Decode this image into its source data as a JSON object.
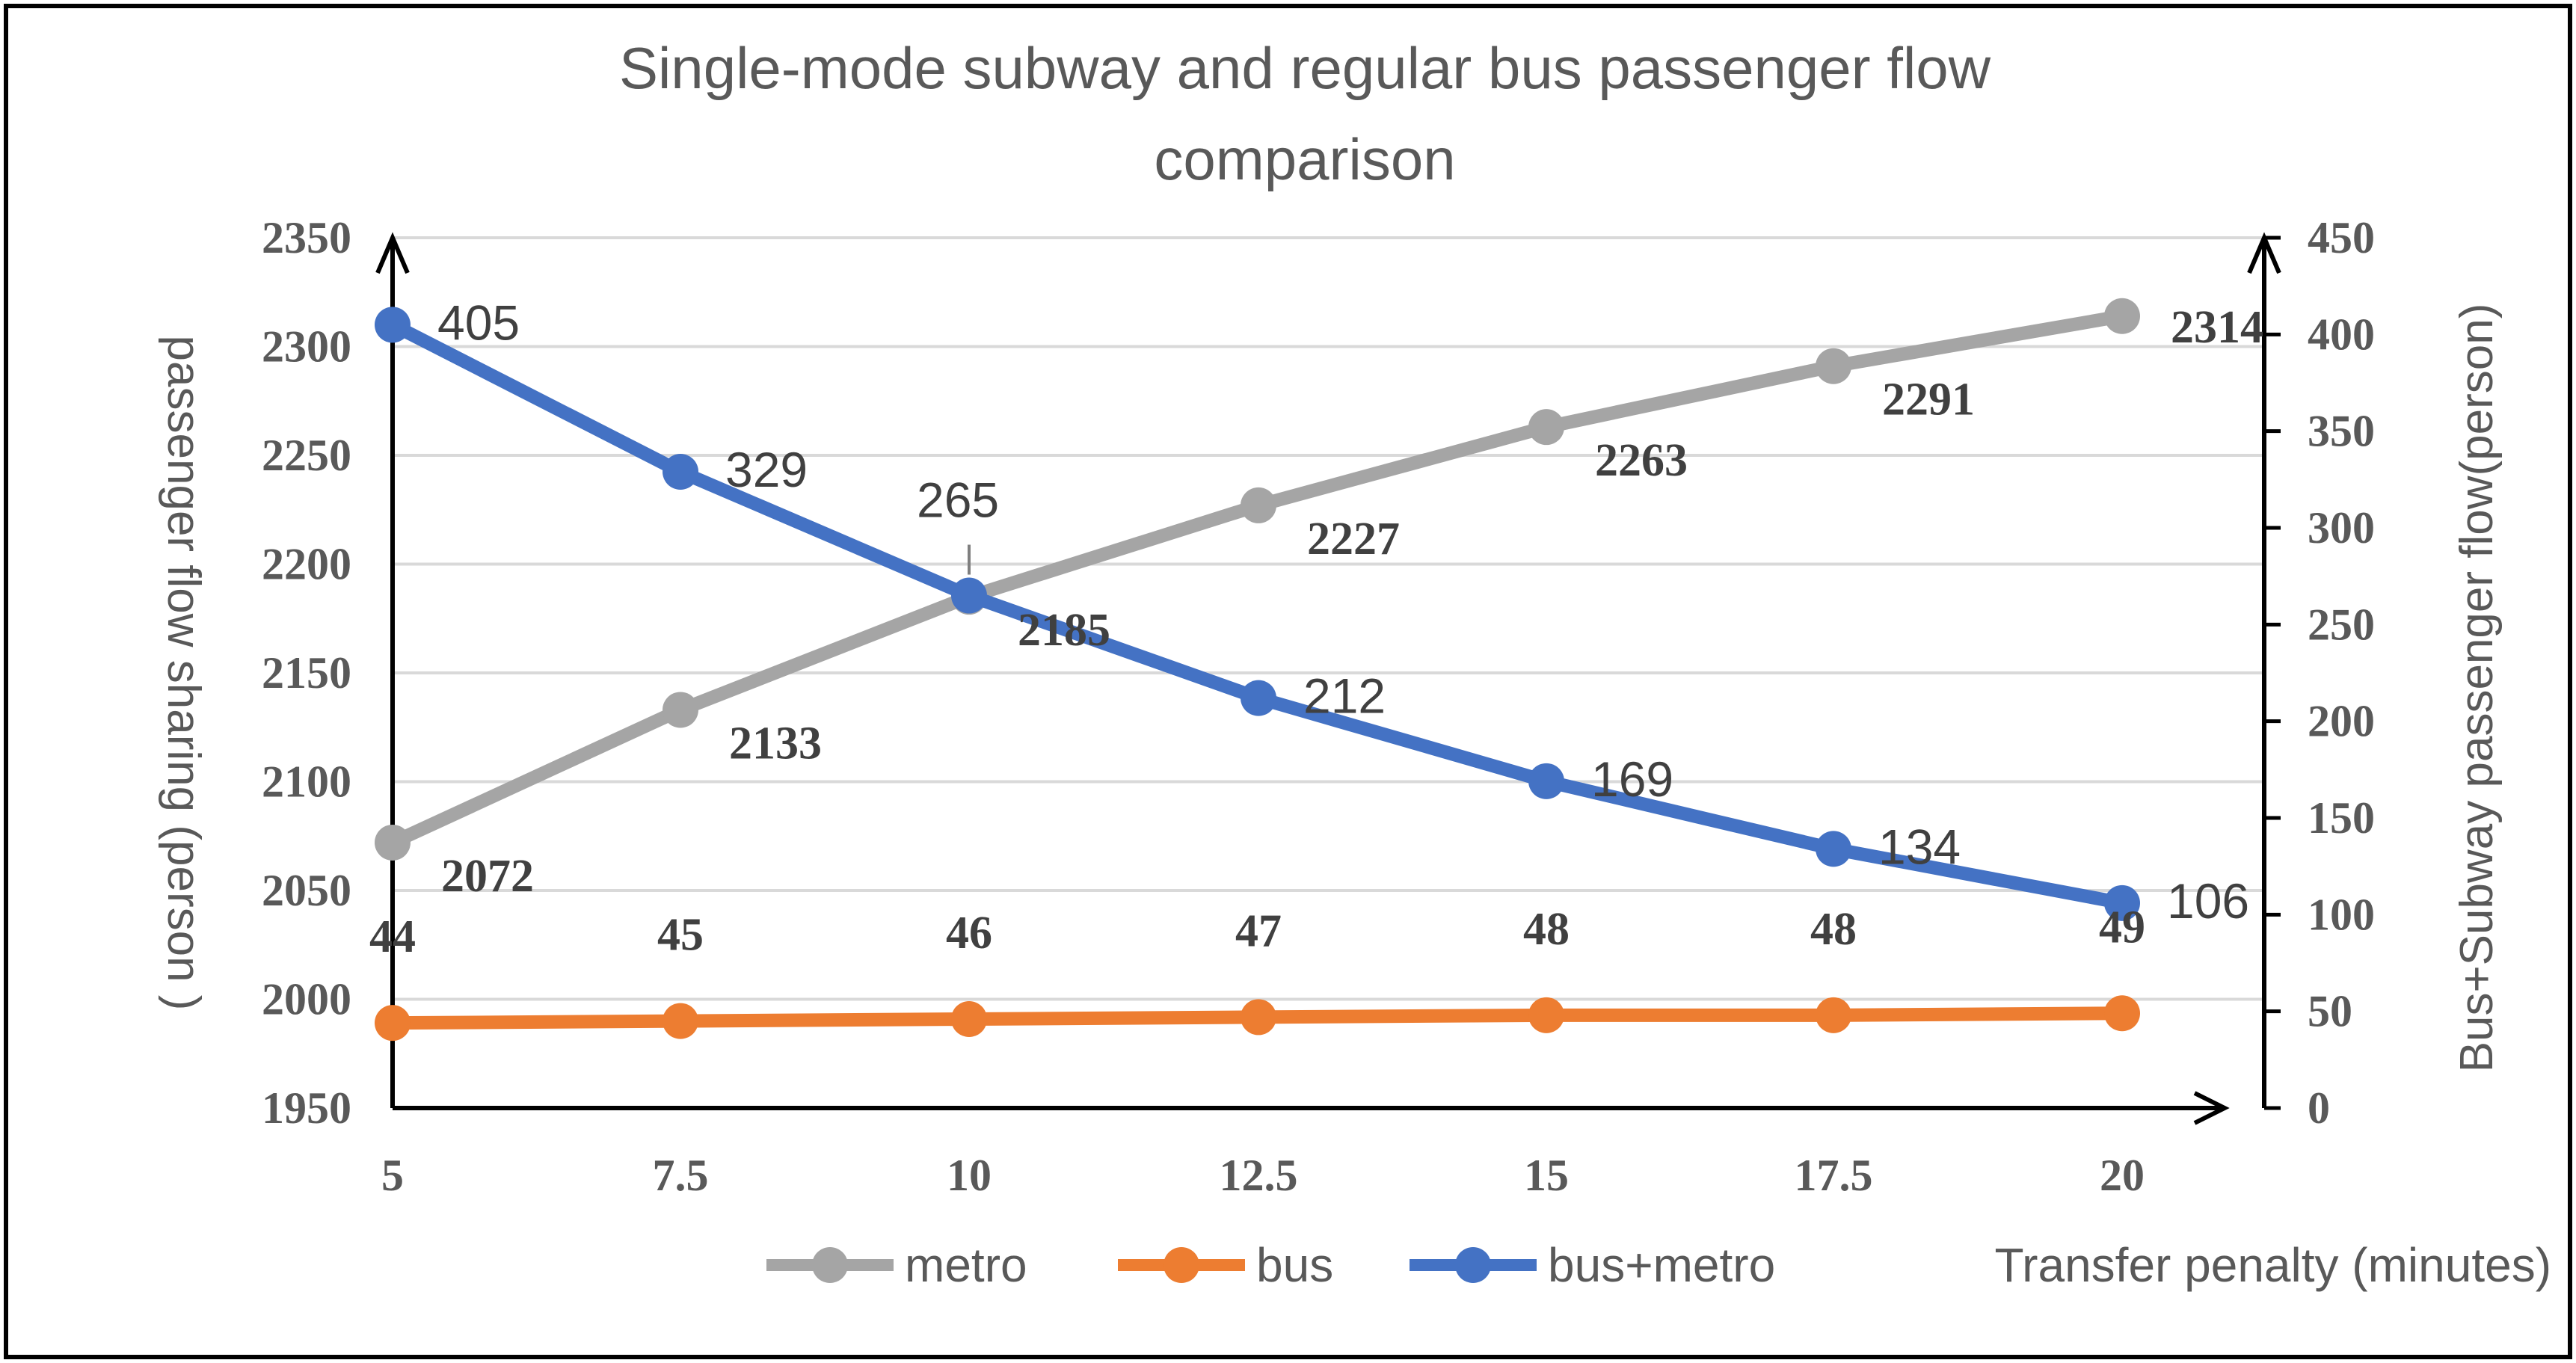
{
  "chart_data": {
    "type": "line",
    "title_lines": [
      "Single-mode subway and regular bus passenger flow",
      "comparison"
    ],
    "xlabel": "Transfer penalty (minutes)",
    "ylabel_left": "passenger flow sharing (person )",
    "ylabel_right": "Bus+Subway passenger flow(person)",
    "categories": [
      "5",
      "7.5",
      "10",
      "12.5",
      "15",
      "17.5",
      "20"
    ],
    "y_left": {
      "min": 1950,
      "max": 2350,
      "ticks": [
        "1950",
        "2000",
        "2050",
        "2100",
        "2150",
        "2200",
        "2250",
        "2300",
        "2350"
      ]
    },
    "y_right": {
      "min": 0,
      "max": 450,
      "ticks": [
        "0",
        "50",
        "100",
        "150",
        "200",
        "250",
        "300",
        "350",
        "400",
        "450"
      ]
    },
    "grid": true,
    "legend_position": "bottom",
    "series": [
      {
        "name": "metro",
        "axis": "left",
        "color": "#a5a5a5",
        "values": [
          2072,
          2133,
          2185,
          2227,
          2263,
          2291,
          2314
        ],
        "labels": [
          "2072",
          "2133",
          "2185",
          "2227",
          "2263",
          "2291",
          "2314"
        ]
      },
      {
        "name": "bus",
        "axis": "right",
        "color": "#ed7d31",
        "values": [
          44,
          45,
          46,
          47,
          48,
          48,
          49
        ],
        "labels": [
          "44",
          "45",
          "46",
          "47",
          "48",
          "48",
          "49"
        ]
      },
      {
        "name": "bus+metro",
        "axis": "right",
        "color": "#4472c4",
        "values": [
          405,
          329,
          265,
          212,
          169,
          134,
          106
        ],
        "labels": [
          "405",
          "329",
          "265",
          "212",
          "169",
          "134",
          "106"
        ]
      }
    ]
  }
}
